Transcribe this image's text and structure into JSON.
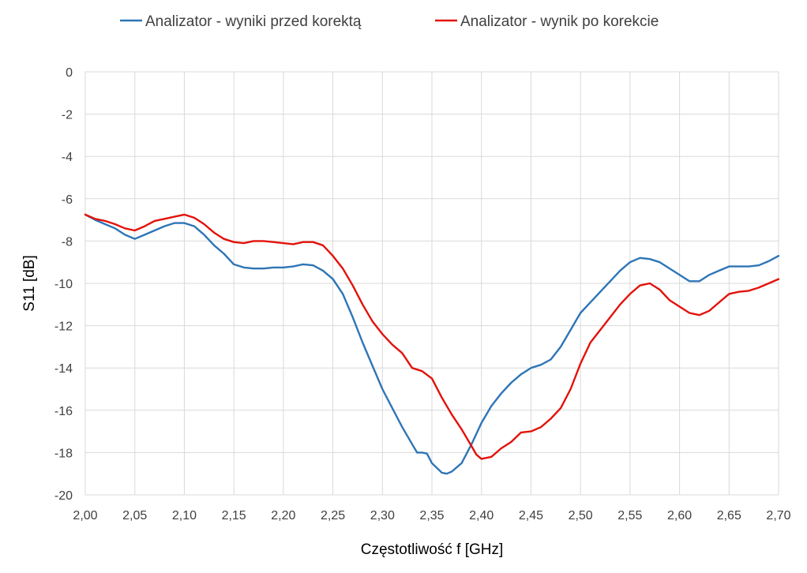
{
  "chart_data": {
    "type": "line",
    "xlabel": "Częstotliwość f [GHz]",
    "ylabel": "S11 [dB]",
    "xlim": [
      2.0,
      2.7
    ],
    "ylim": [
      -20,
      0
    ],
    "x_ticks": [
      "2,00",
      "2,05",
      "2,10",
      "2,15",
      "2,20",
      "2,25",
      "2,30",
      "2,35",
      "2,40",
      "2,45",
      "2,50",
      "2,55",
      "2,60",
      "2,65",
      "2,70"
    ],
    "y_ticks": [
      "0",
      "-2",
      "-4",
      "-6",
      "-8",
      "-10",
      "-12",
      "-14",
      "-16",
      "-18",
      "-20"
    ],
    "grid": "on",
    "legend_position": "top",
    "series": [
      {
        "name": "Analizator - wyniki przed korektą",
        "color": "#2e75b6",
        "x": [
          2.0,
          2.01,
          2.02,
          2.03,
          2.04,
          2.05,
          2.06,
          2.07,
          2.08,
          2.09,
          2.1,
          2.11,
          2.12,
          2.13,
          2.14,
          2.15,
          2.16,
          2.17,
          2.18,
          2.19,
          2.2,
          2.21,
          2.22,
          2.23,
          2.24,
          2.25,
          2.26,
          2.27,
          2.28,
          2.29,
          2.3,
          2.31,
          2.32,
          2.33,
          2.335,
          2.34,
          2.345,
          2.35,
          2.36,
          2.365,
          2.37,
          2.38,
          2.39,
          2.4,
          2.41,
          2.42,
          2.43,
          2.44,
          2.45,
          2.46,
          2.47,
          2.48,
          2.49,
          2.5,
          2.51,
          2.52,
          2.53,
          2.54,
          2.55,
          2.56,
          2.57,
          2.58,
          2.59,
          2.6,
          2.61,
          2.62,
          2.63,
          2.64,
          2.65,
          2.66,
          2.67,
          2.68,
          2.69,
          2.7
        ],
        "values": [
          -6.75,
          -7.0,
          -7.2,
          -7.4,
          -7.7,
          -7.9,
          -7.7,
          -7.5,
          -7.3,
          -7.15,
          -7.15,
          -7.3,
          -7.7,
          -8.2,
          -8.6,
          -9.1,
          -9.25,
          -9.3,
          -9.3,
          -9.25,
          -9.25,
          -9.2,
          -9.1,
          -9.15,
          -9.4,
          -9.8,
          -10.5,
          -11.6,
          -12.8,
          -13.9,
          -15.0,
          -15.9,
          -16.8,
          -17.6,
          -18.0,
          -18.0,
          -18.05,
          -18.5,
          -18.95,
          -19.0,
          -18.9,
          -18.5,
          -17.6,
          -16.6,
          -15.8,
          -15.2,
          -14.7,
          -14.3,
          -14.0,
          -13.85,
          -13.6,
          -13.0,
          -12.2,
          -11.4,
          -10.9,
          -10.4,
          -9.9,
          -9.4,
          -9.0,
          -8.8,
          -8.85,
          -9.0,
          -9.3,
          -9.6,
          -9.9,
          -9.9,
          -9.6,
          -9.4,
          -9.2,
          -9.2,
          -9.2,
          -9.15,
          -8.95,
          -8.7
        ]
      },
      {
        "name": "Analizator - wynik po korekcie",
        "color": "#e3120b",
        "x": [
          2.0,
          2.01,
          2.02,
          2.03,
          2.04,
          2.05,
          2.06,
          2.07,
          2.08,
          2.09,
          2.1,
          2.11,
          2.12,
          2.13,
          2.14,
          2.15,
          2.16,
          2.17,
          2.18,
          2.19,
          2.2,
          2.21,
          2.22,
          2.23,
          2.24,
          2.25,
          2.26,
          2.27,
          2.28,
          2.29,
          2.3,
          2.31,
          2.32,
          2.33,
          2.34,
          2.35,
          2.36,
          2.37,
          2.38,
          2.39,
          2.395,
          2.4,
          2.41,
          2.42,
          2.43,
          2.44,
          2.45,
          2.46,
          2.47,
          2.48,
          2.49,
          2.5,
          2.51,
          2.52,
          2.53,
          2.54,
          2.55,
          2.56,
          2.57,
          2.58,
          2.59,
          2.6,
          2.61,
          2.62,
          2.63,
          2.64,
          2.65,
          2.66,
          2.67,
          2.68,
          2.69,
          2.7
        ],
        "values": [
          -6.75,
          -6.95,
          -7.05,
          -7.2,
          -7.4,
          -7.5,
          -7.3,
          -7.05,
          -6.95,
          -6.85,
          -6.75,
          -6.9,
          -7.2,
          -7.6,
          -7.9,
          -8.05,
          -8.1,
          -8.0,
          -8.0,
          -8.05,
          -8.1,
          -8.15,
          -8.05,
          -8.05,
          -8.2,
          -8.7,
          -9.3,
          -10.1,
          -11.0,
          -11.8,
          -12.4,
          -12.9,
          -13.3,
          -14.0,
          -14.15,
          -14.5,
          -15.4,
          -16.2,
          -16.9,
          -17.7,
          -18.1,
          -18.3,
          -18.2,
          -17.8,
          -17.5,
          -17.05,
          -17.0,
          -16.8,
          -16.4,
          -15.9,
          -15.0,
          -13.8,
          -12.8,
          -12.2,
          -11.6,
          -11.0,
          -10.5,
          -10.1,
          -10.0,
          -10.3,
          -10.8,
          -11.1,
          -11.4,
          -11.5,
          -11.3,
          -10.9,
          -10.5,
          -10.4,
          -10.35,
          -10.2,
          -10.0,
          -9.8
        ]
      }
    ]
  }
}
